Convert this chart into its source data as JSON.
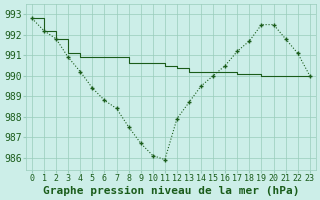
{
  "title": "Graphe pression niveau de la mer (hPa)",
  "background_color": "#cceee8",
  "grid_color": "#99ccbb",
  "line_color": "#1a5c1a",
  "hours": [
    0,
    1,
    2,
    3,
    4,
    5,
    6,
    7,
    8,
    9,
    10,
    11,
    12,
    13,
    14,
    15,
    16,
    17,
    18,
    19,
    20,
    21,
    22,
    23
  ],
  "pressure_actual": [
    992.8,
    992.2,
    991.8,
    990.9,
    990.2,
    989.4,
    988.8,
    988.4,
    987.5,
    986.7,
    986.1,
    985.9,
    987.9,
    988.7,
    989.5,
    990.0,
    990.5,
    991.2,
    991.7,
    992.5,
    992.5,
    991.8,
    991.1,
    990.0
  ],
  "pressure_ref": [
    992.8,
    992.2,
    991.8,
    991.1,
    990.9,
    990.9,
    990.9,
    990.9,
    990.6,
    990.6,
    990.6,
    990.5,
    990.4,
    990.2,
    990.2,
    990.2,
    990.2,
    990.1,
    990.1,
    990.0,
    990.0,
    990.0,
    990.0,
    990.0
  ],
  "ylim_min": 985.4,
  "ylim_max": 993.5,
  "yticks": [
    986,
    987,
    988,
    989,
    990,
    991,
    992,
    993
  ],
  "title_fontsize": 8,
  "tick_fontsize": 6
}
